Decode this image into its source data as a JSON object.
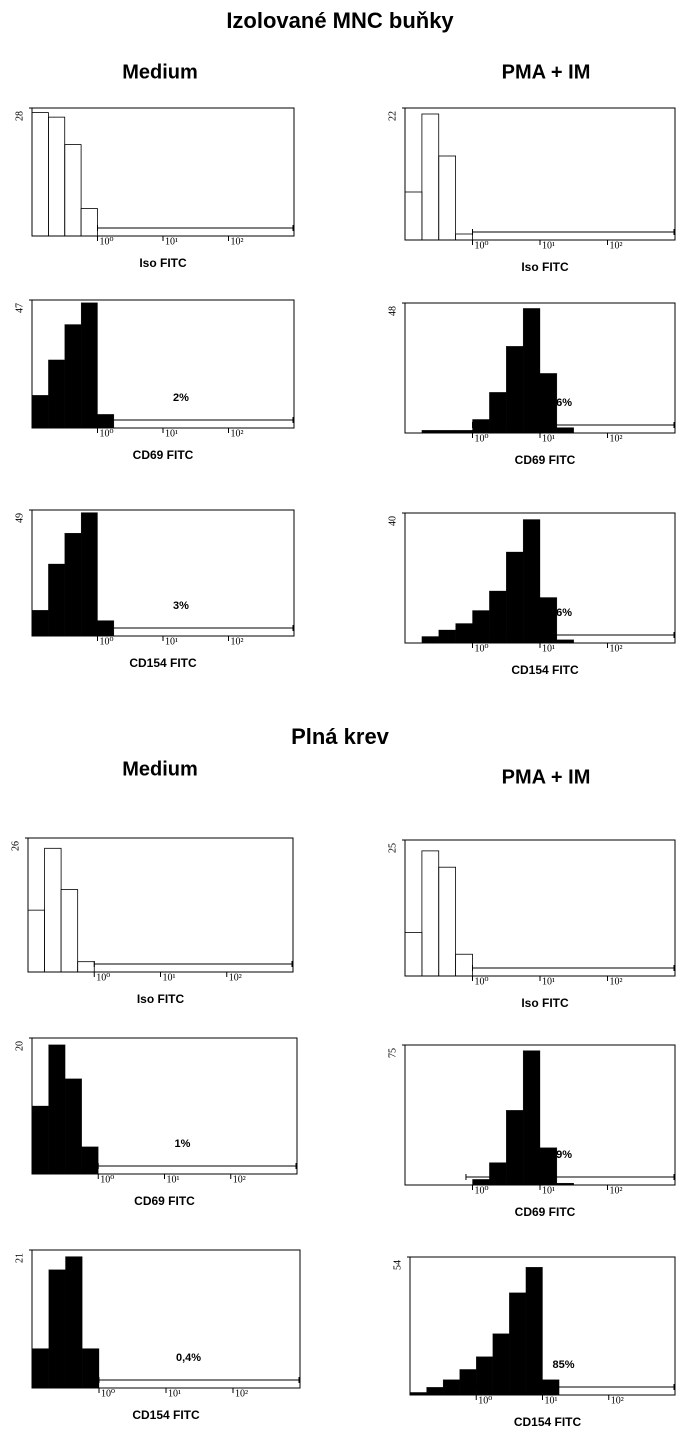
{
  "sections": [
    {
      "title": "Izolované MNC buňky",
      "columns": [
        "Medium",
        "PMA + IM"
      ]
    },
    {
      "title": "Plná krev",
      "columns": [
        "Medium",
        "PMA + IM"
      ]
    }
  ],
  "chart_data": [
    {
      "type": "histogram",
      "xlabel": "Iso FITC",
      "filled": false,
      "xscale": "log",
      "xlim": [
        0.1,
        1000
      ],
      "xticks": [
        {
          "value": 1,
          "label": "10⁰"
        },
        {
          "value": 10,
          "label": "10¹"
        },
        {
          "value": 100,
          "label": "10²"
        }
      ],
      "ylim": [
        0,
        28
      ],
      "yticks": [
        28
      ],
      "marker_range": [
        1,
        1000
      ],
      "bins": [
        0.1,
        0.178,
        0.316,
        0.562,
        1,
        1.78,
        3.16,
        5.62,
        10,
        17.8,
        31.6,
        56.2,
        100,
        178,
        316,
        562,
        1000
      ],
      "values": [
        27,
        26,
        20,
        6,
        0,
        0,
        0,
        0,
        0,
        0,
        0,
        0,
        0,
        0,
        0,
        0
      ]
    },
    {
      "type": "histogram",
      "xlabel": "Iso FITC",
      "filled": false,
      "xscale": "log",
      "xlim": [
        0.1,
        1000
      ],
      "xticks": [
        {
          "value": 1,
          "label": "10⁰"
        },
        {
          "value": 10,
          "label": "10¹"
        },
        {
          "value": 100,
          "label": "10²"
        }
      ],
      "ylim": [
        0,
        22
      ],
      "yticks": [
        22
      ],
      "marker_range": [
        1,
        1000
      ],
      "bins": [
        0.1,
        0.178,
        0.316,
        0.562,
        1,
        1.78,
        3.16,
        5.62,
        10,
        17.8,
        31.6,
        56.2,
        100,
        178,
        316,
        562,
        1000
      ],
      "values": [
        8,
        21,
        14,
        1,
        0,
        0,
        0,
        0,
        0,
        0,
        0,
        0,
        0,
        0,
        0,
        0
      ]
    },
    {
      "type": "histogram",
      "xlabel": "CD69  FITC",
      "annotation": "2%",
      "filled": true,
      "xscale": "log",
      "xlim": [
        0.1,
        1000
      ],
      "xticks": [
        {
          "value": 1,
          "label": "10⁰"
        },
        {
          "value": 10,
          "label": "10¹"
        },
        {
          "value": 100,
          "label": "10²"
        }
      ],
      "ylim": [
        0,
        47
      ],
      "yticks": [
        47
      ],
      "marker_range": [
        1,
        1000
      ],
      "bins": [
        0.1,
        0.178,
        0.316,
        0.562,
        1,
        1.78,
        3.16,
        5.62,
        10,
        17.8,
        31.6,
        56.2,
        100,
        178,
        316,
        562,
        1000
      ],
      "values": [
        12,
        25,
        38,
        46,
        5,
        0,
        0,
        0,
        0,
        0,
        0,
        0,
        0,
        0,
        0,
        0
      ]
    },
    {
      "type": "histogram",
      "xlabel": "CD69 FITC",
      "annotation": "96%",
      "filled": true,
      "xscale": "log",
      "xlim": [
        0.1,
        1000
      ],
      "xticks": [
        {
          "value": 1,
          "label": "10⁰"
        },
        {
          "value": 10,
          "label": "10¹"
        },
        {
          "value": 100,
          "label": "10²"
        }
      ],
      "ylim": [
        0,
        48
      ],
      "yticks": [
        48
      ],
      "marker_range": [
        1,
        1000
      ],
      "bins": [
        0.1,
        0.178,
        0.316,
        0.562,
        1,
        1.78,
        3.16,
        5.62,
        10,
        17.8,
        31.6,
        56.2,
        100,
        178,
        316,
        562,
        1000
      ],
      "values": [
        0,
        1,
        1,
        1,
        5,
        15,
        32,
        46,
        22,
        2,
        0,
        0,
        0,
        0,
        0,
        0
      ]
    },
    {
      "type": "histogram",
      "xlabel": "CD154 FITC",
      "annotation": "3%",
      "filled": true,
      "xscale": "log",
      "xlim": [
        0.1,
        1000
      ],
      "xticks": [
        {
          "value": 1,
          "label": "10⁰"
        },
        {
          "value": 10,
          "label": "10¹"
        },
        {
          "value": 100,
          "label": "10²"
        }
      ],
      "ylim": [
        0,
        49
      ],
      "yticks": [
        49
      ],
      "marker_range": [
        1,
        1000
      ],
      "bins": [
        0.1,
        0.178,
        0.316,
        0.562,
        1,
        1.78,
        3.16,
        5.62,
        10,
        17.8,
        31.6,
        56.2,
        100,
        178,
        316,
        562,
        1000
      ],
      "values": [
        10,
        28,
        40,
        48,
        6,
        0,
        0,
        0,
        0,
        0,
        0,
        0,
        0,
        0,
        0,
        0
      ]
    },
    {
      "type": "histogram",
      "xlabel": "CD154 FITC",
      "annotation": "86%",
      "filled": true,
      "xscale": "log",
      "xlim": [
        0.1,
        1000
      ],
      "xticks": [
        {
          "value": 1,
          "label": "10⁰"
        },
        {
          "value": 10,
          "label": "10¹"
        },
        {
          "value": 100,
          "label": "10²"
        }
      ],
      "ylim": [
        0,
        40
      ],
      "yticks": [
        40
      ],
      "marker_range": [
        1,
        1000
      ],
      "bins": [
        0.1,
        0.178,
        0.316,
        0.562,
        1,
        1.78,
        3.16,
        5.62,
        10,
        17.8,
        31.6,
        56.2,
        100,
        178,
        316,
        562,
        1000
      ],
      "values": [
        0,
        2,
        4,
        6,
        10,
        16,
        28,
        38,
        14,
        1,
        0,
        0,
        0,
        0,
        0,
        0
      ]
    },
    {
      "type": "histogram",
      "xlabel": "Iso FITC",
      "filled": false,
      "xscale": "log",
      "xlim": [
        0.1,
        1000
      ],
      "xticks": [
        {
          "value": 1,
          "label": "10⁰"
        },
        {
          "value": 10,
          "label": "10¹"
        },
        {
          "value": 100,
          "label": "10²"
        }
      ],
      "ylim": [
        0,
        26
      ],
      "yticks": [
        26
      ],
      "marker_range": [
        1,
        1000
      ],
      "bins": [
        0.1,
        0.178,
        0.316,
        0.562,
        1,
        1.78,
        3.16,
        5.62,
        10,
        17.8,
        31.6,
        56.2,
        100,
        178,
        316,
        562,
        1000
      ],
      "values": [
        12,
        24,
        16,
        2,
        0,
        0,
        0,
        0,
        0,
        0,
        0,
        0,
        0,
        0,
        0,
        0
      ]
    },
    {
      "type": "histogram",
      "xlabel": "Iso FITC",
      "filled": false,
      "xscale": "log",
      "xlim": [
        0.1,
        1000
      ],
      "xticks": [
        {
          "value": 1,
          "label": "10⁰"
        },
        {
          "value": 10,
          "label": "10¹"
        },
        {
          "value": 100,
          "label": "10²"
        }
      ],
      "ylim": [
        0,
        25
      ],
      "yticks": [
        25
      ],
      "marker_range": [
        1,
        1000
      ],
      "bins": [
        0.1,
        0.178,
        0.316,
        0.562,
        1,
        1.78,
        3.16,
        5.62,
        10,
        17.8,
        31.6,
        56.2,
        100,
        178,
        316,
        562,
        1000
      ],
      "values": [
        8,
        23,
        20,
        4,
        0,
        0,
        0,
        0,
        0,
        0,
        0,
        0,
        0,
        0,
        0,
        0
      ]
    },
    {
      "type": "histogram",
      "xlabel": "CD69 FITC",
      "annotation": "1%",
      "filled": true,
      "xscale": "log",
      "xlim": [
        0.1,
        1000
      ],
      "xticks": [
        {
          "value": 1,
          "label": "10⁰"
        },
        {
          "value": 10,
          "label": "10¹"
        },
        {
          "value": 100,
          "label": "10²"
        }
      ],
      "ylim": [
        0,
        20
      ],
      "yticks": [
        20
      ],
      "marker_range": [
        1,
        1000
      ],
      "bins": [
        0.1,
        0.178,
        0.316,
        0.562,
        1,
        1.78,
        3.16,
        5.62,
        10,
        17.8,
        31.6,
        56.2,
        100,
        178,
        316,
        562,
        1000
      ],
      "values": [
        10,
        19,
        14,
        4,
        0,
        0,
        0,
        0,
        0,
        0,
        0,
        0,
        0,
        0,
        0,
        0
      ]
    },
    {
      "type": "histogram",
      "xlabel": "CD69  FITC",
      "annotation": "99%",
      "filled": true,
      "xscale": "log",
      "xlim": [
        0.1,
        1000
      ],
      "xticks": [
        {
          "value": 1,
          "label": "10⁰"
        },
        {
          "value": 10,
          "label": "10¹"
        },
        {
          "value": 100,
          "label": "10²"
        }
      ],
      "ylim": [
        0,
        75
      ],
      "yticks": [
        75
      ],
      "marker_range": [
        0.8,
        1000
      ],
      "bins": [
        0.1,
        0.178,
        0.316,
        0.562,
        1,
        1.78,
        3.16,
        5.62,
        10,
        17.8,
        31.6,
        56.2,
        100,
        178,
        316,
        562,
        1000
      ],
      "values": [
        0,
        0,
        0,
        0,
        3,
        12,
        40,
        72,
        20,
        1,
        0,
        0,
        0,
        0,
        0,
        0
      ]
    },
    {
      "type": "histogram",
      "xlabel": "CD154 FITC",
      "annotation": "0,4%",
      "filled": true,
      "xscale": "log",
      "xlim": [
        0.1,
        1000
      ],
      "xticks": [
        {
          "value": 1,
          "label": "10⁰"
        },
        {
          "value": 10,
          "label": "10¹"
        },
        {
          "value": 100,
          "label": "10²"
        }
      ],
      "ylim": [
        0,
        21
      ],
      "yticks": [
        21
      ],
      "marker_range": [
        1,
        1000
      ],
      "bins": [
        0.1,
        0.178,
        0.316,
        0.562,
        1,
        1.78,
        3.16,
        5.62,
        10,
        17.8,
        31.6,
        56.2,
        100,
        178,
        316,
        562,
        1000
      ],
      "values": [
        6,
        18,
        20,
        6,
        0,
        0,
        0,
        0,
        0,
        0,
        0,
        0,
        0,
        0,
        0,
        0
      ]
    },
    {
      "type": "histogram",
      "xlabel": "CD154 FITC",
      "annotation": "85%",
      "filled": true,
      "xscale": "log",
      "xlim": [
        0.1,
        1000
      ],
      "xticks": [
        {
          "value": 1,
          "label": "10⁰"
        },
        {
          "value": 10,
          "label": "10¹"
        },
        {
          "value": 100,
          "label": "10²"
        }
      ],
      "ylim": [
        0,
        54
      ],
      "yticks": [
        54
      ],
      "marker_range": [
        1,
        1000
      ],
      "bins": [
        0.1,
        0.178,
        0.316,
        0.562,
        1,
        1.78,
        3.16,
        5.62,
        10,
        17.8,
        31.6,
        56.2,
        100,
        178,
        316,
        562,
        1000
      ],
      "values": [
        1,
        3,
        6,
        10,
        15,
        24,
        40,
        50,
        6,
        0,
        0,
        0,
        0,
        0,
        0,
        0
      ]
    }
  ]
}
